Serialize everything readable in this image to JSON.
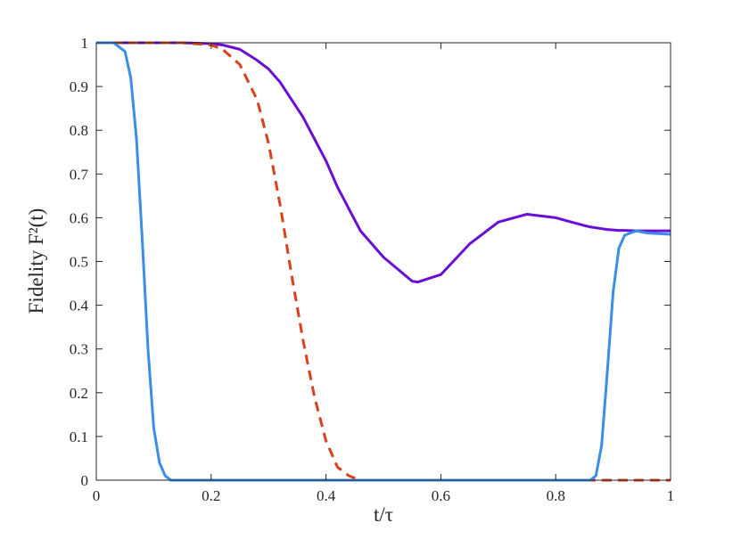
{
  "chart_data": {
    "type": "line",
    "xlabel": "t/τ",
    "ylabel": "Fidelity F²(t)",
    "x": [
      0,
      0.03,
      0.05,
      0.06,
      0.07,
      0.08,
      0.09,
      0.1,
      0.11,
      0.12,
      0.13,
      0.15,
      0.2,
      0.22,
      0.25,
      0.28,
      0.3,
      0.32,
      0.34,
      0.36,
      0.38,
      0.4,
      0.42,
      0.44,
      0.46,
      0.5,
      0.55,
      0.56,
      0.6,
      0.65,
      0.7,
      0.75,
      0.8,
      0.85,
      0.86,
      0.87,
      0.88,
      0.89,
      0.9,
      0.91,
      0.92,
      0.94,
      0.96,
      1
    ],
    "series": [
      {
        "color": "#6a0dd6",
        "style": "solid",
        "values": [
          1,
          1,
          1,
          1,
          1,
          1,
          1,
          1,
          1,
          1,
          1,
          1,
          0.998,
          0.995,
          0.985,
          0.96,
          0.94,
          0.91,
          0.87,
          0.83,
          0.78,
          0.73,
          0.67,
          0.62,
          0.57,
          0.51,
          0.455,
          0.453,
          0.47,
          0.54,
          0.59,
          0.608,
          0.6,
          0.582,
          0.579,
          0.577,
          0.575,
          0.573,
          0.572,
          0.571,
          0.571,
          0.57,
          0.57,
          0.57
        ]
      },
      {
        "color": "#d9411e",
        "style": "dashed",
        "values": [
          1,
          1,
          1,
          1,
          1,
          1,
          1,
          1,
          1,
          1,
          1,
          1,
          0.995,
          0.985,
          0.95,
          0.87,
          0.77,
          0.63,
          0.47,
          0.32,
          0.19,
          0.09,
          0.03,
          0.01,
          0,
          0,
          0,
          0,
          0,
          0,
          0,
          0,
          0,
          0,
          0,
          0,
          0,
          0,
          0,
          0,
          0,
          0,
          0,
          0
        ]
      },
      {
        "color": "#3a8ee8",
        "style": "solid",
        "values": [
          1,
          1,
          0.98,
          0.92,
          0.78,
          0.55,
          0.3,
          0.12,
          0.04,
          0.01,
          0,
          0,
          0,
          0,
          0,
          0,
          0,
          0,
          0,
          0,
          0,
          0,
          0,
          0,
          0,
          0,
          0,
          0,
          0,
          0,
          0,
          0,
          0,
          0,
          0,
          0.01,
          0.08,
          0.25,
          0.43,
          0.53,
          0.56,
          0.57,
          0.565,
          0.562
        ]
      }
    ],
    "xlim": [
      0,
      1
    ],
    "xticks": [
      0,
      0.2,
      0.4,
      0.6,
      0.8,
      1
    ],
    "ylim": [
      0,
      1
    ],
    "yticks": [
      0,
      0.1,
      0.2,
      0.3,
      0.4,
      0.5,
      0.6,
      0.7,
      0.8,
      0.9,
      1
    ],
    "grid": false
  }
}
